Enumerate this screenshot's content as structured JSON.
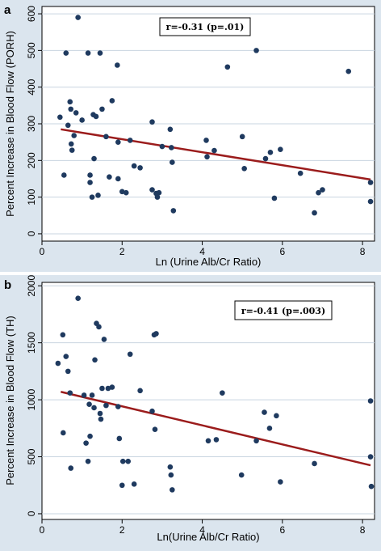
{
  "chart_data": [
    {
      "type": "scatter",
      "panel_label": "a",
      "xlabel": "Ln (Urine Alb/Cr Ratio)",
      "ylabel": "Percent Increase in Blood Flow (PORH)",
      "xlim": [
        0,
        8.3
      ],
      "ylim": [
        -20,
        620
      ],
      "xticks": [
        0,
        2,
        4,
        6,
        8
      ],
      "yticks": [
        0,
        100,
        200,
        300,
        400,
        500,
        600
      ],
      "annotation": "r=-0.31 (p=.01)",
      "fit_line": {
        "x": [
          0.47,
          8.2
        ],
        "y": [
          285,
          148
        ]
      },
      "grid": "horizontal",
      "colors": {
        "points": "#1f3a5f",
        "fit_line": "#9b1c1c",
        "panel_background": "#dbe5ee"
      },
      "points": [
        {
          "x": 0.45,
          "y": 318
        },
        {
          "x": 0.55,
          "y": 160
        },
        {
          "x": 0.6,
          "y": 493
        },
        {
          "x": 0.65,
          "y": 296
        },
        {
          "x": 0.7,
          "y": 360
        },
        {
          "x": 0.72,
          "y": 340
        },
        {
          "x": 0.73,
          "y": 245
        },
        {
          "x": 0.75,
          "y": 228
        },
        {
          "x": 0.8,
          "y": 268
        },
        {
          "x": 0.9,
          "y": 590
        },
        {
          "x": 0.85,
          "y": 330
        },
        {
          "x": 1.0,
          "y": 310
        },
        {
          "x": 1.15,
          "y": 493
        },
        {
          "x": 1.2,
          "y": 160
        },
        {
          "x": 1.2,
          "y": 140
        },
        {
          "x": 1.25,
          "y": 100
        },
        {
          "x": 1.28,
          "y": 325
        },
        {
          "x": 1.3,
          "y": 205
        },
        {
          "x": 1.35,
          "y": 320
        },
        {
          "x": 1.4,
          "y": 105
        },
        {
          "x": 1.45,
          "y": 493
        },
        {
          "x": 1.5,
          "y": 340
        },
        {
          "x": 1.6,
          "y": 265
        },
        {
          "x": 1.68,
          "y": 155
        },
        {
          "x": 1.75,
          "y": 363
        },
        {
          "x": 1.88,
          "y": 460
        },
        {
          "x": 1.9,
          "y": 250
        },
        {
          "x": 1.9,
          "y": 150
        },
        {
          "x": 2.0,
          "y": 115
        },
        {
          "x": 2.1,
          "y": 112
        },
        {
          "x": 2.2,
          "y": 255
        },
        {
          "x": 2.3,
          "y": 185
        },
        {
          "x": 2.45,
          "y": 180
        },
        {
          "x": 2.75,
          "y": 305
        },
        {
          "x": 2.75,
          "y": 120
        },
        {
          "x": 2.85,
          "y": 110
        },
        {
          "x": 2.88,
          "y": 100
        },
        {
          "x": 2.92,
          "y": 112
        },
        {
          "x": 3.0,
          "y": 238
        },
        {
          "x": 3.2,
          "y": 285
        },
        {
          "x": 3.23,
          "y": 235
        },
        {
          "x": 3.25,
          "y": 195
        },
        {
          "x": 3.28,
          "y": 63
        },
        {
          "x": 4.1,
          "y": 255
        },
        {
          "x": 4.12,
          "y": 210
        },
        {
          "x": 4.3,
          "y": 227
        },
        {
          "x": 4.63,
          "y": 455
        },
        {
          "x": 5.0,
          "y": 265
        },
        {
          "x": 5.05,
          "y": 178
        },
        {
          "x": 5.35,
          "y": 500
        },
        {
          "x": 5.58,
          "y": 205
        },
        {
          "x": 5.7,
          "y": 222
        },
        {
          "x": 5.8,
          "y": 97
        },
        {
          "x": 5.95,
          "y": 230
        },
        {
          "x": 6.45,
          "y": 165
        },
        {
          "x": 6.8,
          "y": 57
        },
        {
          "x": 6.9,
          "y": 112
        },
        {
          "x": 7.0,
          "y": 120
        },
        {
          "x": 7.65,
          "y": 443
        },
        {
          "x": 8.2,
          "y": 140
        },
        {
          "x": 8.2,
          "y": 88
        }
      ]
    },
    {
      "type": "scatter",
      "panel_label": "b",
      "xlabel": "Ln(Urine Alb/Cr Ratio)",
      "ylabel": "Percent Increase in Blood Flow (TH)",
      "xlim": [
        0,
        8.3
      ],
      "ylim": [
        -50,
        2030
      ],
      "xticks": [
        0,
        2,
        4,
        6,
        8
      ],
      "yticks": [
        0,
        500,
        1000,
        1500,
        2000
      ],
      "annotation": "r=-0.41 (p=.003)",
      "fit_line": {
        "x": [
          0.47,
          8.2
        ],
        "y": [
          1070,
          425
        ]
      },
      "grid": "horizontal",
      "colors": {
        "points": "#1f3a5f",
        "fit_line": "#9b1c1c",
        "panel_background": "#dbe5ee"
      },
      "points": [
        {
          "x": 0.4,
          "y": 1320
        },
        {
          "x": 0.52,
          "y": 1570
        },
        {
          "x": 0.53,
          "y": 710
        },
        {
          "x": 0.6,
          "y": 1380
        },
        {
          "x": 0.65,
          "y": 1250
        },
        {
          "x": 0.7,
          "y": 1060
        },
        {
          "x": 0.72,
          "y": 400
        },
        {
          "x": 0.9,
          "y": 1890
        },
        {
          "x": 1.05,
          "y": 1040
        },
        {
          "x": 1.1,
          "y": 620
        },
        {
          "x": 1.15,
          "y": 460
        },
        {
          "x": 1.18,
          "y": 960
        },
        {
          "x": 1.2,
          "y": 680
        },
        {
          "x": 1.25,
          "y": 1040
        },
        {
          "x": 1.3,
          "y": 930
        },
        {
          "x": 1.32,
          "y": 1350
        },
        {
          "x": 1.36,
          "y": 1670
        },
        {
          "x": 1.42,
          "y": 1640
        },
        {
          "x": 1.45,
          "y": 880
        },
        {
          "x": 1.47,
          "y": 830
        },
        {
          "x": 1.5,
          "y": 1100
        },
        {
          "x": 1.55,
          "y": 1530
        },
        {
          "x": 1.6,
          "y": 950
        },
        {
          "x": 1.65,
          "y": 1100
        },
        {
          "x": 1.75,
          "y": 1110
        },
        {
          "x": 1.9,
          "y": 940
        },
        {
          "x": 1.93,
          "y": 660
        },
        {
          "x": 2.0,
          "y": 250
        },
        {
          "x": 2.02,
          "y": 460
        },
        {
          "x": 2.15,
          "y": 460
        },
        {
          "x": 2.2,
          "y": 1400
        },
        {
          "x": 2.3,
          "y": 260
        },
        {
          "x": 2.45,
          "y": 1080
        },
        {
          "x": 2.75,
          "y": 900
        },
        {
          "x": 2.8,
          "y": 1570
        },
        {
          "x": 2.85,
          "y": 1580
        },
        {
          "x": 2.82,
          "y": 740
        },
        {
          "x": 3.2,
          "y": 410
        },
        {
          "x": 3.22,
          "y": 340
        },
        {
          "x": 3.25,
          "y": 210
        },
        {
          "x": 4.15,
          "y": 640
        },
        {
          "x": 4.35,
          "y": 650
        },
        {
          "x": 4.5,
          "y": 1060
        },
        {
          "x": 4.98,
          "y": 340
        },
        {
          "x": 5.35,
          "y": 640
        },
        {
          "x": 5.55,
          "y": 890
        },
        {
          "x": 5.68,
          "y": 750
        },
        {
          "x": 5.85,
          "y": 860
        },
        {
          "x": 5.95,
          "y": 280
        },
        {
          "x": 6.8,
          "y": 440
        },
        {
          "x": 8.2,
          "y": 990
        },
        {
          "x": 8.2,
          "y": 500
        },
        {
          "x": 8.22,
          "y": 240
        }
      ]
    }
  ]
}
